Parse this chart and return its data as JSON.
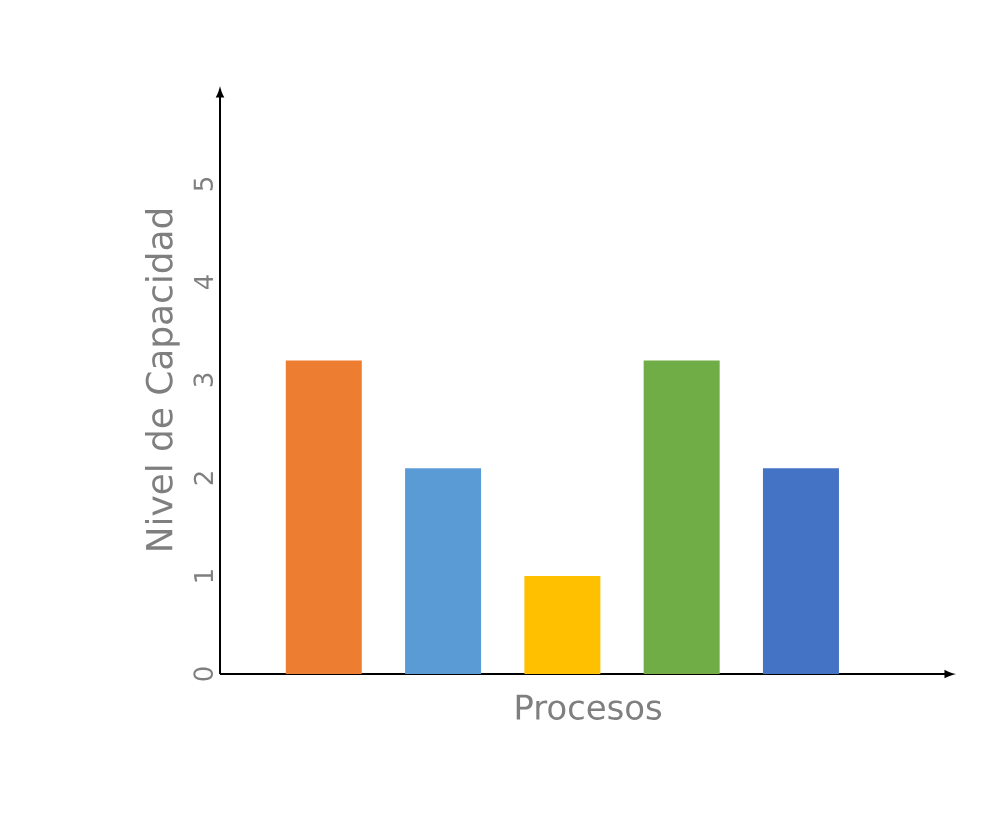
{
  "chart_data": {
    "type": "bar",
    "xlabel": "Procesos",
    "ylabel": "Nivel de Capacidad",
    "categories": [
      null,
      null,
      null,
      null,
      null
    ],
    "values": [
      3.2,
      2.1,
      1,
      3.2,
      2.1
    ],
    "colors": [
      "#ed7d31",
      "#5b9bd5",
      "#ffc000",
      "#70ad47",
      "#4472c4"
    ],
    "ylim": [
      0,
      6
    ],
    "yticks": [
      0,
      1,
      2,
      3,
      4,
      5
    ]
  }
}
